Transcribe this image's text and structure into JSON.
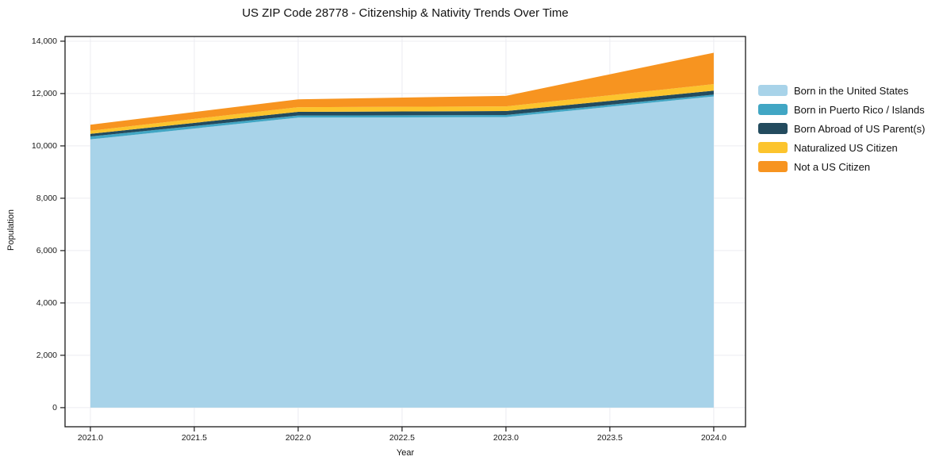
{
  "title": "US ZIP Code 28778 - Citizenship & Nativity Trends Over Time",
  "chart_data": {
    "type": "area",
    "stacked": true,
    "title": "US ZIP Code 28778 - Citizenship & Nativity Trends Over Time",
    "xlabel": "Year",
    "ylabel": "Population",
    "x": [
      2021,
      2022,
      2023,
      2024
    ],
    "series": [
      {
        "name": "Born in the United States",
        "color": "#a8d3e9",
        "values": [
          10250,
          11080,
          11100,
          11890
        ]
      },
      {
        "name": "Born in Puerto Rico / Islands",
        "color": "#41a6c4",
        "values": [
          110,
          80,
          80,
          70
        ]
      },
      {
        "name": "Born Abroad of US Parent(s)",
        "color": "#234b5e",
        "values": [
          100,
          140,
          150,
          150
        ]
      },
      {
        "name": "Naturalized US Citizen",
        "color": "#fcc42d",
        "values": [
          120,
          180,
          180,
          250
        ]
      },
      {
        "name": "Not a US Citizen",
        "color": "#f79420",
        "values": [
          230,
          300,
          400,
          1200
        ]
      }
    ],
    "x_ticks": [
      2021.0,
      2021.5,
      2022.0,
      2022.5,
      2023.0,
      2023.5,
      2024.0
    ],
    "x_tick_labels": [
      "2021.0",
      "2021.5",
      "2022.0",
      "2022.5",
      "2023.0",
      "2023.5",
      "2024.0"
    ],
    "y_ticks": [
      0,
      2000,
      4000,
      6000,
      8000,
      10000,
      12000,
      14000
    ],
    "y_tick_labels": [
      "0",
      "2,000",
      "4,000",
      "6,000",
      "8,000",
      "10,000",
      "12,000",
      "14,000"
    ],
    "xlim": [
      2020.878,
      2024.153
    ],
    "ylim": [
      -730,
      14180
    ],
    "grid": true,
    "legend_position": "right of plot, upper"
  }
}
